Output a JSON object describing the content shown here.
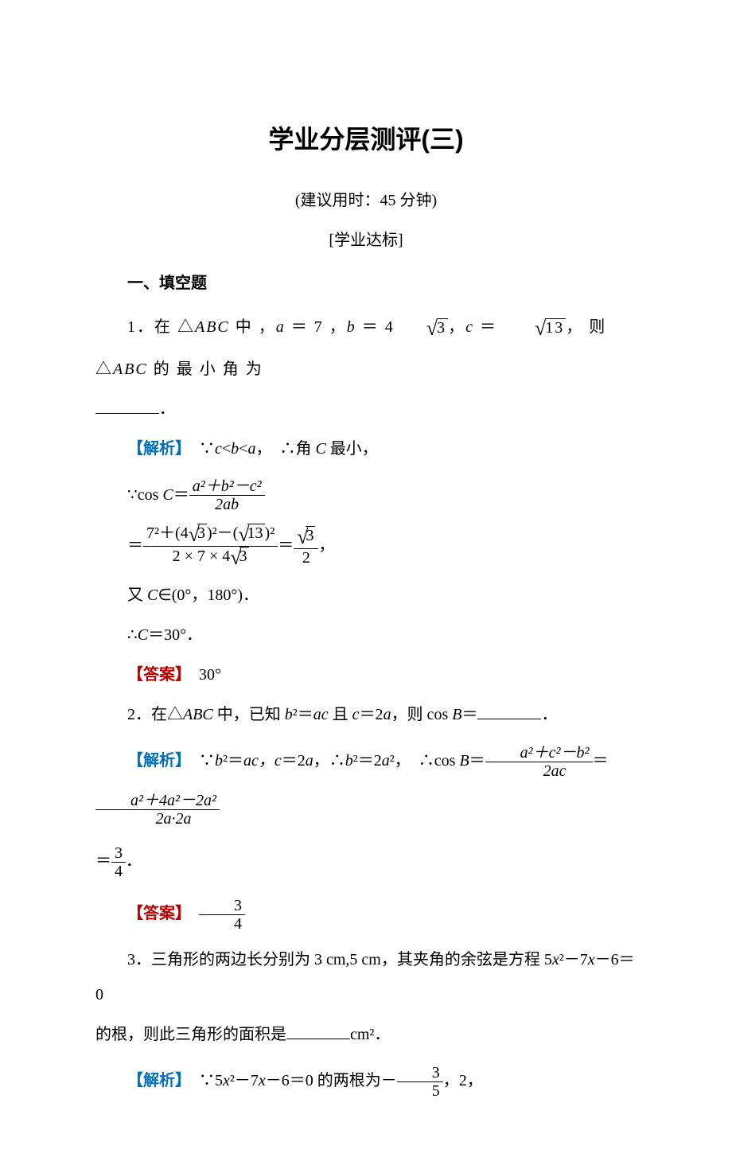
{
  "colors": {
    "text": "#000000",
    "blue": "#0070c0",
    "red": "#c00000",
    "background": "#ffffff"
  },
  "title": "学业分层测评(三)",
  "subtitle": "(建议用时：45 分钟)",
  "section_header": "[学业达标]",
  "heading_fill": "一、填空题",
  "q1": {
    "pre": "1．在 △",
    "abc": "ABC",
    "mid1": " 中 ，",
    "a_eq": "a",
    "eq7": " ＝ 7 ，",
    "b_eq": "b",
    "eq4r3a": " ＝ 4",
    "r3": "3",
    "comma1": "，",
    "c_eq": "c",
    "eqroot": " ＝ ",
    "r13": "13",
    "tail": "， 则 △",
    "abc2": "ABC",
    "tail2": " 的 最 小 角 为",
    "period": "．",
    "analysis_label": "【解析】",
    "analysis_t1": "　∵",
    "c": "c",
    "lt": "<",
    "b": "b",
    "a": "a",
    "t2": "，　∴角 ",
    "C": "C",
    "t3": " 最小，",
    "cos_pre": "∵cos ",
    "cos_C": "C",
    "cos_eq": "＝",
    "num1": "a²＋b²－c²",
    "den1": "2ab",
    "line2_eq": "＝",
    "num2_a": "7²＋(4",
    "num2_r3": "3",
    "num2_b": ")²－(",
    "num2_r13": "13",
    "num2_c": ")²",
    "den2_a": "2 × 7 × 4",
    "den2_r3": "3",
    "eq2": "＝",
    "num3_r3": "3",
    "den3": "2",
    "comma": "，",
    "line3": "又 ",
    "line3_C": "C",
    "line3_t": "∈(0°，180°)．",
    "line4": "∴",
    "line4_C": "C",
    "line4_t": "＝30°．",
    "answer_label": "【答案】",
    "answer": "　30°"
  },
  "q2": {
    "pre": "2．在△",
    "abc": "ABC",
    "t1": " 中，已知 ",
    "b": "b",
    "sq": "²＝",
    "ac": "ac",
    "t2": " 且 ",
    "c": "c",
    "eq2a": "＝2",
    "a": "a",
    "t3": "，则 cos ",
    "B": "B",
    "t4": "＝",
    "period": "．",
    "analysis_label": "【解析】",
    "an_t1": "　∵",
    "an_b": "b",
    "an_sq": "²＝",
    "an_ac": "ac",
    "an_c": "，c",
    "an_eq2a": "＝2",
    "an_a": "a",
    "an_so": "，∴",
    "an_b2": "b",
    "an_sq2": "²＝2",
    "an_a2": "a",
    "an_sq2b": "²，　∴cos ",
    "an_B": "B",
    "an_eq": "＝",
    "num1": "a²＋c²－b²",
    "den1": "2ac",
    "eq2": "＝",
    "num2": "a²＋4a²－2a²",
    "den2": "2a·2a",
    "eq3": "＝",
    "num3": "3",
    "den3": "4",
    "period2": "．",
    "answer_label": "【答案】",
    "ans_num": "3",
    "ans_den": "4"
  },
  "q3": {
    "t1": "3．三角形的两边长分别为 3 cm,5 cm，其夹角的余弦是方程 5",
    "x": "x",
    "t2": "²－7",
    "t3": "－6＝0",
    "t4": "的根，则此三角形的面积是",
    "t5": "cm²．",
    "analysis_label": "【解析】",
    "an_t1": "　∵5",
    "an_x": "x",
    "an_t2": "²－7",
    "an_t3": "－6＝0 的两根为－",
    "num1": "3",
    "den1": "5",
    "an_t4": "，2，"
  }
}
